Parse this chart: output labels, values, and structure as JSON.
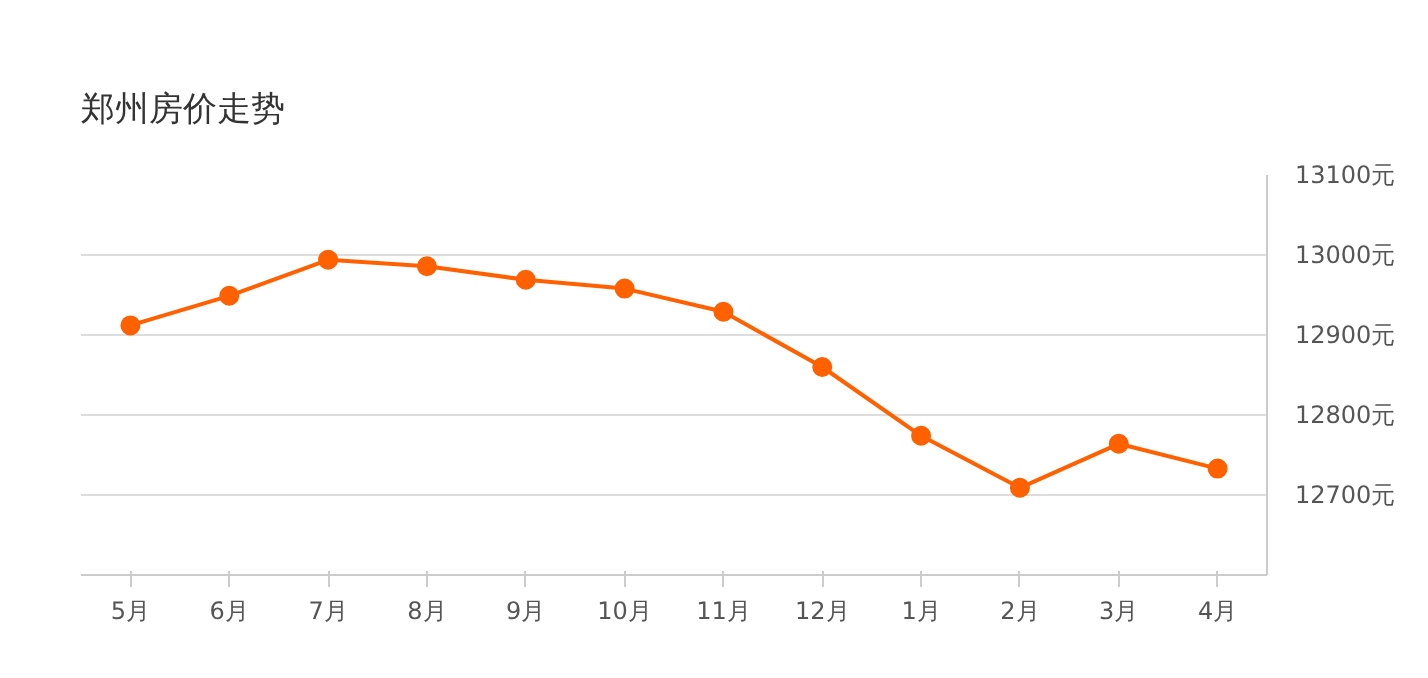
{
  "chart_data": {
    "type": "line",
    "title": "郑州房价走势",
    "categories": [
      "5月",
      "6月",
      "7月",
      "8月",
      "9月",
      "10月",
      "11月",
      "12月",
      "1月",
      "2月",
      "3月",
      "4月"
    ],
    "series": [
      {
        "color": "#ff6000",
        "values": [
          12912,
          12949,
          12994,
          12986,
          12969,
          12958,
          12929,
          12860,
          12774,
          12709,
          12764,
          12733
        ]
      }
    ],
    "ylim": [
      12600,
      13100
    ],
    "yticks": [
      {
        "value": 12700,
        "label": "12700元"
      },
      {
        "value": 12800,
        "label": "12800元"
      },
      {
        "value": 12900,
        "label": "12900元"
      },
      {
        "value": 13000,
        "label": "13000元"
      },
      {
        "value": 13100,
        "label": "13100元"
      }
    ],
    "grid": "y",
    "marker": "circle",
    "line_style": "solid"
  }
}
